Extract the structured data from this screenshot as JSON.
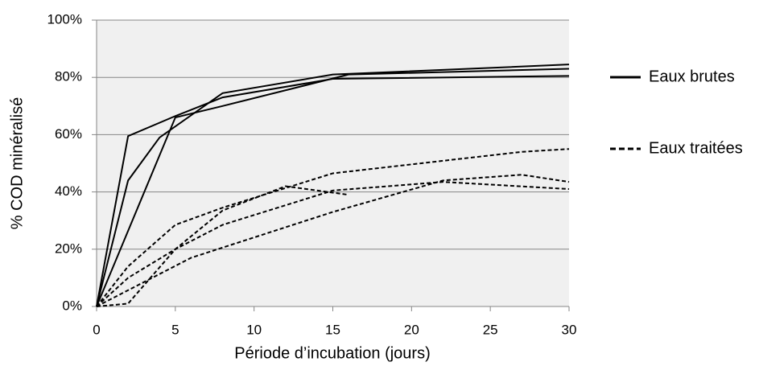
{
  "chart_data": {
    "type": "line",
    "xlabel": "Période d’incubation  (jours)",
    "ylabel": "% COD minéralisé",
    "xlim": [
      0,
      30
    ],
    "xticks": [
      0,
      5,
      10,
      15,
      20,
      25,
      30
    ],
    "ylim": [
      0,
      100
    ],
    "yticks": [
      {
        "value": 0,
        "label": "0%"
      },
      {
        "value": 20,
        "label": "20%"
      },
      {
        "value": 40,
        "label": "40%"
      },
      {
        "value": 60,
        "label": "60%"
      },
      {
        "value": 80,
        "label": "80%"
      },
      {
        "value": 100,
        "label": "100%"
      }
    ],
    "grid": true,
    "legend": "right",
    "series": [
      {
        "name": "Eaux brutes",
        "color": "#000000",
        "dash": "solid",
        "x": [
          0,
          2,
          5,
          8,
          15,
          30
        ],
        "values": [
          0,
          59.5,
          66.5,
          73,
          79.5,
          80.5
        ]
      },
      {
        "name": "Eaux brutes",
        "color": "#000000",
        "dash": "solid",
        "x": [
          0,
          2,
          4,
          8,
          15,
          30
        ],
        "values": [
          0,
          44,
          59,
          74.5,
          81,
          84.5
        ]
      },
      {
        "name": "Eaux brutes",
        "color": "#000000",
        "dash": "solid",
        "x": [
          0,
          5,
          8,
          16,
          30
        ],
        "values": [
          0,
          66,
          70,
          81,
          83
        ]
      },
      {
        "name": "Eaux traitées",
        "color": "#000000",
        "dash": "dashed",
        "x": [
          0,
          2,
          5,
          8,
          15,
          27,
          30
        ],
        "values": [
          0,
          14,
          28.5,
          34.5,
          46.5,
          54,
          55
        ]
      },
      {
        "name": "Eaux traitées",
        "color": "#000000",
        "dash": "dashed",
        "x": [
          0,
          2,
          5,
          8,
          12,
          16
        ],
        "values": [
          0,
          1,
          20,
          33.5,
          42,
          39
        ]
      },
      {
        "name": "Eaux traitées",
        "color": "#000000",
        "dash": "dashed",
        "x": [
          0,
          2,
          5,
          8,
          15,
          22,
          30
        ],
        "values": [
          0,
          10,
          20,
          28.5,
          40.5,
          43.5,
          41
        ]
      },
      {
        "name": "Eaux traitées",
        "color": "#000000",
        "dash": "dashed",
        "x": [
          0,
          6,
          15,
          22,
          27,
          30
        ],
        "values": [
          0,
          17,
          33,
          44,
          46,
          43.5
        ]
      }
    ]
  }
}
